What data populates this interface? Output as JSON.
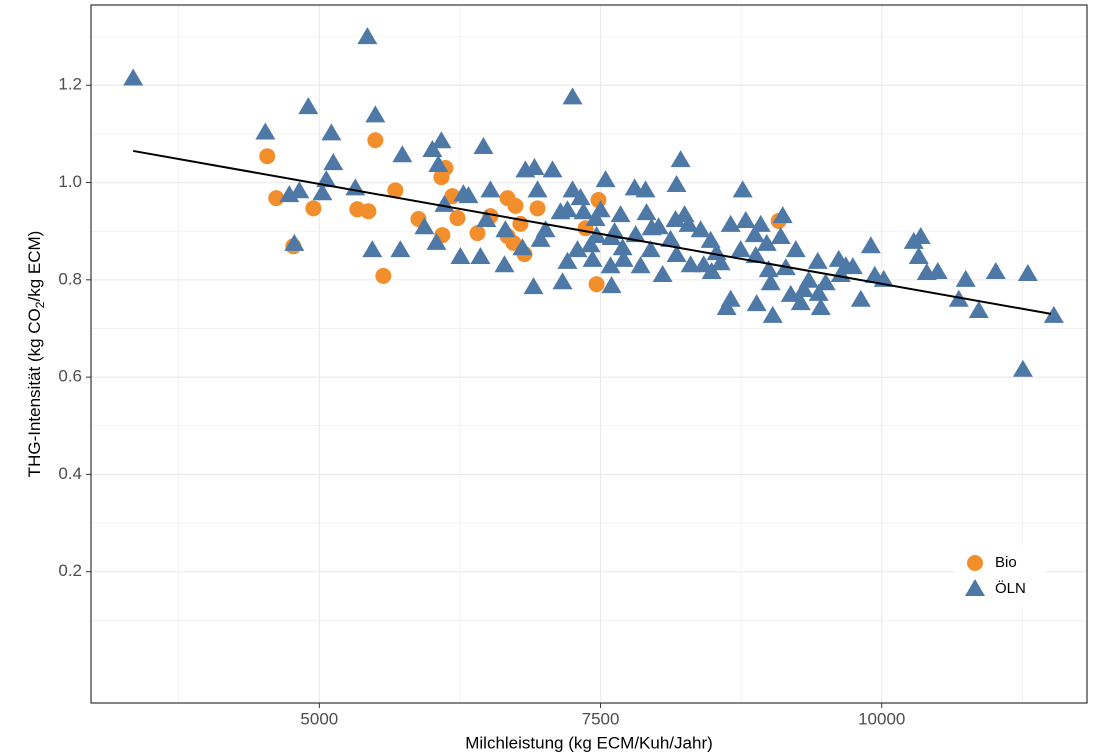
{
  "chart_data": {
    "type": "scatter",
    "xlabel": "Milchleistung (kg ECM/Kuh/Jahr)",
    "ylabel": [
      "THG-Intensität (kg CO",
      "2",
      "/kg ECM)"
    ],
    "xlim": [
      2970,
      11825
    ],
    "ylim": [
      -0.07,
      1.365
    ],
    "xticks": [
      5000,
      7500,
      10000
    ],
    "yticks": [
      0.2,
      0.4,
      0.6,
      0.8,
      1.0,
      1.2
    ],
    "x_minor_grid": [
      3750,
      6250,
      8750,
      11250
    ],
    "y_minor_grid": [
      0.1,
      0.3,
      0.5,
      0.7,
      0.9,
      1.1,
      1.3
    ],
    "grid": true,
    "legend_position": "bottom-right",
    "trend": {
      "color": "#000000",
      "x": [
        3345,
        11505
      ],
      "y": [
        1.065,
        0.73
      ]
    },
    "series": [
      {
        "name": "Bio",
        "color": "#F28E2B",
        "marker": "circle",
        "x": [
          4537,
          4617,
          4769,
          4947,
          5338,
          5436,
          5498,
          5569,
          5676,
          5881,
          6085,
          6121,
          6094,
          6183,
          6228,
          6406,
          6521,
          6673,
          6744,
          6673,
          6726,
          6788,
          6824,
          6940,
          7367,
          7482,
          7465,
          9084
        ],
        "values": [
          1.054,
          0.968,
          0.869,
          0.947,
          0.945,
          0.941,
          1.087,
          0.808,
          0.984,
          0.925,
          1.011,
          1.03,
          0.892,
          0.972,
          0.927,
          0.896,
          0.931,
          0.968,
          0.952,
          0.89,
          0.876,
          0.915,
          0.853,
          0.947,
          0.906,
          0.964,
          0.791,
          0.921
        ]
      },
      {
        "name": "ÖLN",
        "color": "#4E79A7",
        "marker": "triangle",
        "x": [
          3345,
          5427,
          7251,
          4520,
          4902,
          5498,
          5107,
          6085,
          6459,
          5124,
          5062,
          5027,
          4822,
          4733,
          5320,
          5738,
          6005,
          6058,
          4778,
          5471,
          5720,
          5934,
          6041,
          6112,
          6281,
          6326,
          6254,
          6432,
          6521,
          6485,
          6654,
          6832,
          6913,
          7073,
          7251,
          7322,
          7206,
          7144,
          7349,
          6940,
          7011,
          6967,
          6806,
          6646,
          6904,
          7162,
          7295,
          7206,
          7411,
          7465,
          7456,
          7500,
          7545,
          7598,
          7589,
          7598,
          7678,
          7696,
          7812,
          7803,
          7900,
          7909,
          7954,
          7856,
          7945,
          8052,
          8123,
          8167,
          8247,
          8283,
          8176,
          8301,
          8176,
          8212,
          8390,
          8479,
          8532,
          8568,
          8657,
          8746,
          8764,
          8791,
          8871,
          8880,
          8924,
          8978,
          8995,
          9013,
          9031,
          8888,
          8621,
          8657,
          9102,
          9120,
          9147,
          9236,
          9191,
          9280,
          9307,
          9351,
          9431,
          9440,
          9502,
          9458,
          9618,
          9636,
          9680,
          9743,
          9814,
          9903,
          9938,
          10018,
          10285,
          10347,
          10329,
          10400,
          10498,
          10685,
          10747,
          10863,
          11014,
          11299,
          11255,
          11530,
          7625,
          7705,
          8016,
          8417,
          8488,
          7429
        ],
        "values": [
          1.214,
          1.299,
          1.175,
          1.103,
          1.155,
          1.138,
          1.101,
          1.085,
          1.073,
          1.04,
          1.005,
          0.978,
          0.982,
          0.974,
          0.988,
          1.056,
          1.067,
          1.036,
          0.874,
          0.861,
          0.861,
          0.908,
          0.876,
          0.954,
          0.976,
          0.972,
          0.847,
          0.847,
          0.984,
          0.923,
          0.902,
          1.025,
          1.03,
          1.025,
          0.984,
          0.968,
          0.943,
          0.939,
          0.939,
          0.984,
          0.902,
          0.882,
          0.865,
          0.83,
          0.785,
          0.795,
          0.861,
          0.837,
          0.871,
          0.89,
          0.925,
          0.943,
          1.005,
          0.886,
          0.828,
          0.787,
          0.933,
          0.865,
          0.892,
          0.988,
          0.984,
          0.937,
          0.906,
          0.828,
          0.861,
          0.81,
          0.882,
          0.923,
          0.933,
          0.913,
          0.851,
          0.83,
          0.995,
          1.046,
          0.902,
          0.88,
          0.855,
          0.834,
          0.913,
          0.861,
          0.984,
          0.921,
          0.892,
          0.849,
          0.913,
          0.874,
          0.82,
          0.793,
          0.726,
          0.75,
          0.742,
          0.759,
          0.888,
          0.931,
          0.824,
          0.861,
          0.769,
          0.752,
          0.779,
          0.798,
          0.837,
          0.771,
          0.793,
          0.742,
          0.841,
          0.81,
          0.828,
          0.826,
          0.759,
          0.869,
          0.808,
          0.8,
          0.878,
          0.888,
          0.847,
          0.814,
          0.816,
          0.759,
          0.8,
          0.736,
          0.816,
          0.812,
          0.615,
          0.726,
          0.898,
          0.841,
          0.908,
          0.83,
          0.816,
          0.841
        ]
      }
    ]
  }
}
